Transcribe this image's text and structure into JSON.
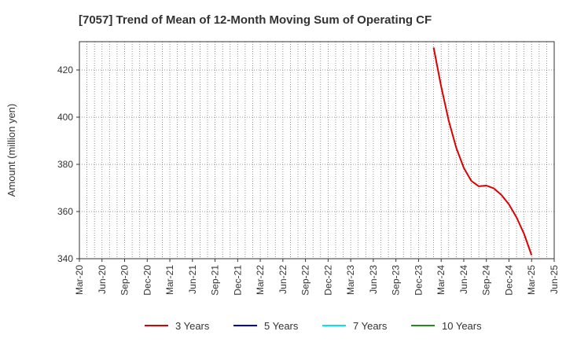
{
  "chart_data": {
    "type": "line",
    "title": "[7057]  Trend of Mean of 12-Month Moving Sum of Operating CF",
    "ylabel": "Amount (million yen)",
    "xlabel": "",
    "ylim": [
      340,
      432
    ],
    "yticks": [
      340,
      360,
      380,
      400,
      420
    ],
    "x_range": [
      "Mar-20",
      "Jun-25"
    ],
    "x_ticks": [
      "Mar-20",
      "Jun-20",
      "Sep-20",
      "Dec-20",
      "Mar-21",
      "Jun-21",
      "Sep-21",
      "Dec-21",
      "Mar-22",
      "Jun-22",
      "Sep-22",
      "Dec-22",
      "Mar-23",
      "Jun-23",
      "Sep-23",
      "Dec-23",
      "Mar-24",
      "Jun-24",
      "Sep-24",
      "Dec-24",
      "Mar-25",
      "Jun-25"
    ],
    "grid": true,
    "legend_position": "bottom",
    "series": [
      {
        "name": "3 Years",
        "color": "#dd0000",
        "x": [
          "Feb-24",
          "Mar-24",
          "Apr-24",
          "May-24",
          "Jun-24",
          "Jul-24",
          "Aug-24",
          "Sep-24",
          "Oct-24",
          "Nov-24",
          "Dec-24",
          "Jan-25",
          "Feb-25",
          "Mar-25"
        ],
        "values": [
          429.5,
          413,
          398.5,
          387,
          378.5,
          373,
          370.7,
          371,
          369.8,
          367,
          363,
          357.5,
          350.5,
          341.5
        ]
      },
      {
        "name": "5 Years",
        "color": "#0000cc",
        "x": [],
        "values": []
      },
      {
        "name": "7 Years",
        "color": "#00e5ee",
        "x": [],
        "values": []
      },
      {
        "name": "10 Years",
        "color": "#228b22",
        "x": [],
        "values": []
      }
    ]
  }
}
